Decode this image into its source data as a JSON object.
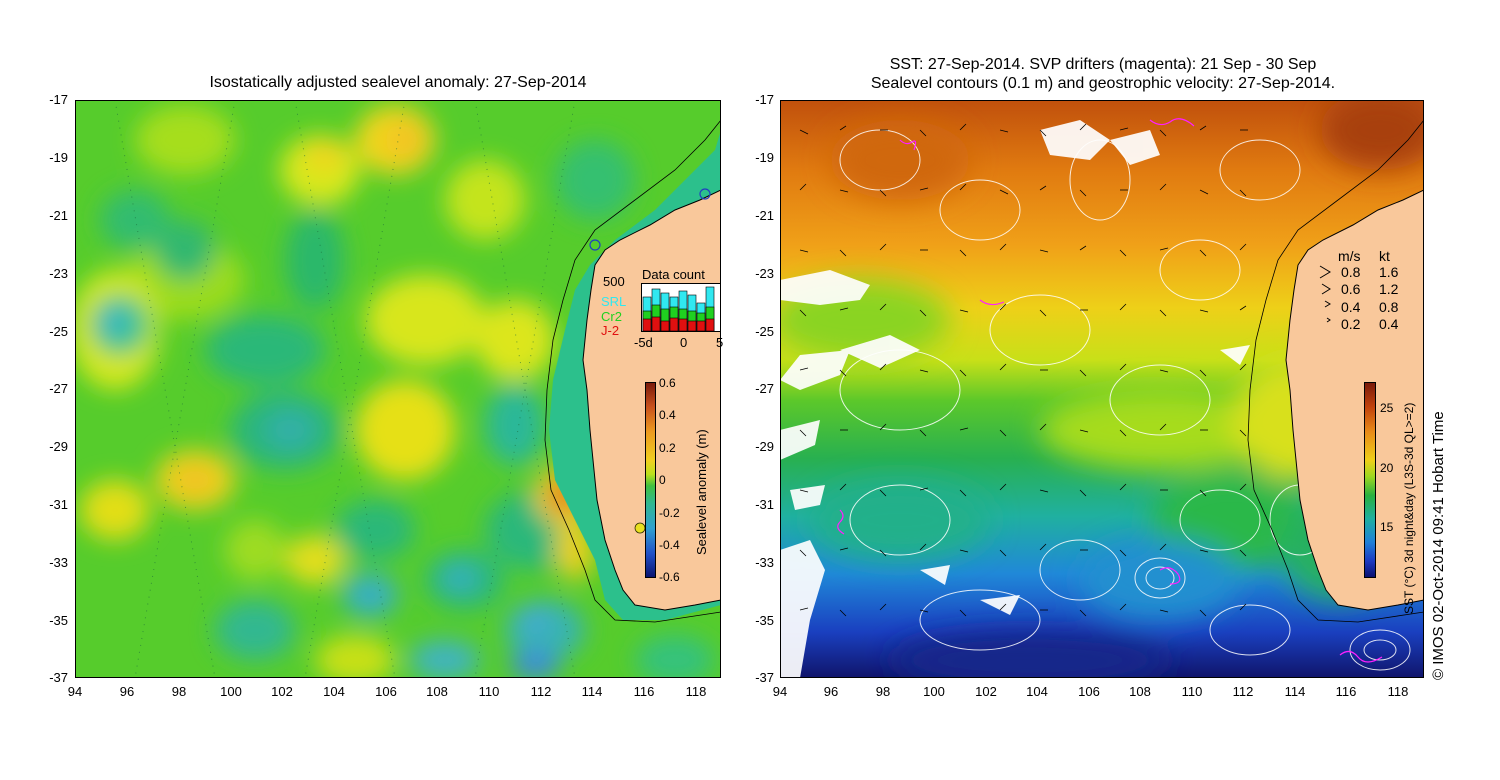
{
  "left_panel": {
    "title": "Isostatically adjusted sealevel anomaly: 27-Sep-2014",
    "y_ticks": [
      "-17",
      "-19",
      "-21",
      "-23",
      "-25",
      "-27",
      "-29",
      "-31",
      "-33",
      "-35",
      "-37"
    ],
    "x_ticks": [
      "94",
      "96",
      "98",
      "100",
      "102",
      "104",
      "106",
      "108",
      "110",
      "112",
      "114",
      "116",
      "118"
    ],
    "colorbar": {
      "label": "Sealevel anomaly (m)",
      "ticks": [
        "0.6",
        "0.4",
        "0.2",
        "0",
        "-0.2",
        "-0.4",
        "-0.6"
      ]
    },
    "data_count": {
      "title": "Data count",
      "max_label": "500",
      "series": [
        "SRL",
        "Cr2",
        "J-2"
      ],
      "series_colors": [
        "#30e8f0",
        "#20d020",
        "#e01010"
      ],
      "x_ticks": [
        "-5d",
        "0",
        "5"
      ]
    }
  },
  "right_panel": {
    "title_line1": "SST: 27-Sep-2014. SVP drifters (magenta): 21 Sep - 30 Sep",
    "title_line2": "Sealevel contours (0.1 m) and geostrophic velocity: 27-Sep-2014.",
    "y_ticks": [
      "-17",
      "-19",
      "-21",
      "-23",
      "-25",
      "-27",
      "-29",
      "-31",
      "-33",
      "-35",
      "-37"
    ],
    "x_ticks": [
      "94",
      "96",
      "98",
      "100",
      "102",
      "104",
      "106",
      "108",
      "110",
      "112",
      "114",
      "116",
      "118"
    ],
    "velocity_legend": {
      "header_ms": "m/s",
      "header_kt": "kt",
      "rows": [
        {
          "ms": "0.8",
          "kt": "1.6"
        },
        {
          "ms": "0.6",
          "kt": "1.2"
        },
        {
          "ms": "0.4",
          "kt": "0.8"
        },
        {
          "ms": "0.2",
          "kt": "0.4"
        }
      ]
    },
    "colorbar": {
      "label": "SST (°C) 3d night&day (L3S-3d QL>=2)",
      "ticks": [
        "25",
        "20",
        "15"
      ]
    },
    "credit": "© IMOS 02-Oct-2014 09:41 Hobart Time"
  },
  "colors": {
    "land": "#f9c89b",
    "coast": "#000000"
  }
}
